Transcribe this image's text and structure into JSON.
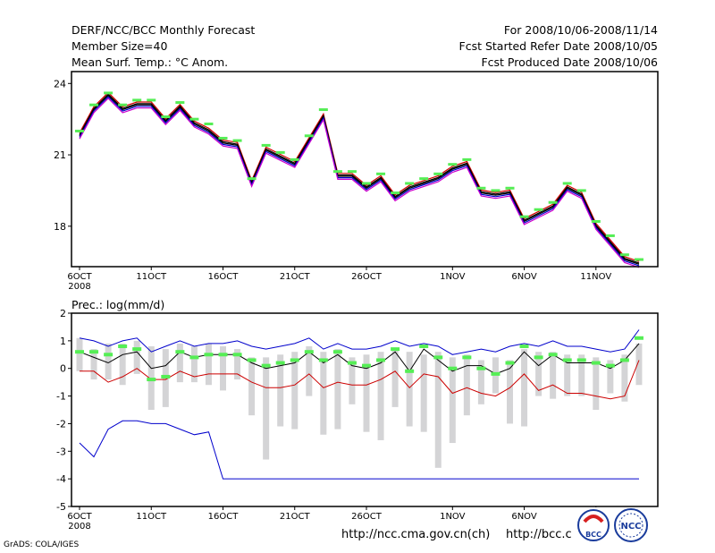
{
  "header": {
    "left": [
      "DERF/NCC/BCC Monthly Forecast",
      "Member Size=40",
      "Mean Surf. Temp.: °C Anom."
    ],
    "right": [
      "For 2008/10/06-2008/11/14",
      "Fcst Started Refer Date 2008/10/05",
      "Fcst Produced Date 2008/10/06"
    ]
  },
  "footer": {
    "grads": "GrADS: COLA/IGES",
    "url1": "http://ncc.cma.gov.cn(ch)",
    "url2": "http://bcc.c",
    "logo1": "BCC",
    "logo2": "NCC"
  },
  "chart_data": [
    {
      "type": "line",
      "title": "Mean Surf. Temp.: °C Anom.",
      "days": 40,
      "ylim": [
        16.3,
        24.5
      ],
      "yticks": [
        18,
        21,
        24
      ],
      "xticks": [
        {
          "day": 0,
          "label": "6OCT",
          "sub": "2008"
        },
        {
          "day": 5,
          "label": "11OCT"
        },
        {
          "day": 10,
          "label": "16OCT"
        },
        {
          "day": 15,
          "label": "21OCT"
        },
        {
          "day": 20,
          "label": "26OCT"
        },
        {
          "day": 26,
          "label": "1NOV"
        },
        {
          "day": 31,
          "label": "6NOV"
        },
        {
          "day": 36,
          "label": "11NOV"
        }
      ],
      "series": [
        {
          "name": "ensemble mean",
          "values": [
            21.8,
            22.9,
            23.5,
            22.9,
            23.1,
            23.1,
            22.4,
            23.0,
            22.3,
            22.0,
            21.5,
            21.4,
            19.8,
            21.2,
            20.9,
            20.6,
            21.6,
            22.6,
            20.1,
            20.1,
            19.6,
            20.0,
            19.2,
            19.6,
            19.8,
            20.0,
            20.4,
            20.6,
            19.4,
            19.3,
            19.4,
            18.2,
            18.5,
            18.8,
            19.6,
            19.3,
            18.0,
            17.3,
            16.6,
            16.4
          ]
        },
        {
          "name": "green markers",
          "values": [
            22.0,
            23.1,
            23.6,
            23.1,
            23.3,
            23.3,
            22.6,
            23.2,
            22.5,
            22.3,
            21.7,
            21.6,
            20.0,
            21.4,
            21.1,
            20.8,
            21.8,
            22.9,
            20.3,
            20.3,
            19.8,
            20.2,
            19.4,
            19.8,
            20.0,
            20.2,
            20.6,
            20.8,
            19.6,
            19.5,
            19.6,
            18.4,
            18.7,
            19.0,
            19.8,
            19.5,
            18.2,
            17.6,
            16.8,
            16.6
          ]
        }
      ]
    },
    {
      "type": "line",
      "title": "Prec.: log(mm/d)",
      "days": 40,
      "ylim": [
        -5,
        2
      ],
      "yticks": [
        -5,
        -4,
        -3,
        -2,
        -1,
        0,
        1,
        2
      ],
      "xticks": [
        {
          "day": 0,
          "label": "6OCT",
          "sub": "2008"
        },
        {
          "day": 5,
          "label": "11OCT"
        },
        {
          "day": 10,
          "label": "16OCT"
        },
        {
          "day": 15,
          "label": "21OCT"
        },
        {
          "day": 20,
          "label": "26OCT"
        },
        {
          "day": 26,
          "label": "1NOV"
        },
        {
          "day": 31,
          "label": "6NOV"
        },
        {
          "day": 36,
          "label": "11NOV"
        }
      ],
      "bars": {
        "top": [
          1.1,
          0.7,
          0.9,
          0.9,
          1.0,
          0.8,
          0.7,
          0.9,
          0.8,
          0.9,
          0.8,
          0.7,
          0.4,
          0.4,
          0.5,
          0.6,
          0.8,
          0.6,
          0.7,
          0.4,
          0.5,
          0.6,
          0.7,
          0.6,
          0.5,
          0.6,
          0.4,
          0.5,
          0.3,
          0.4,
          0.3,
          0.7,
          0.6,
          0.6,
          0.5,
          0.5,
          0.4,
          0.3,
          0.5,
          0.9
        ],
        "bottom": [
          -0.1,
          -0.4,
          -0.4,
          -0.6,
          -0.2,
          -1.5,
          -1.4,
          -0.5,
          -0.5,
          -0.6,
          -0.8,
          -0.4,
          -1.7,
          -3.3,
          -2.1,
          -2.2,
          -1.0,
          -2.4,
          -2.2,
          -1.3,
          -2.3,
          -2.6,
          -1.4,
          -2.1,
          -2.3,
          -3.6,
          -2.7,
          -1.7,
          -1.3,
          -0.9,
          -2.0,
          -2.1,
          -1.0,
          -1.1,
          -1.0,
          -1.0,
          -1.5,
          -0.9,
          -1.2,
          -0.6
        ]
      },
      "series": [
        {
          "name": "upper bound",
          "color": "#0000cc",
          "values": [
            1.1,
            1.0,
            0.8,
            1.0,
            1.1,
            0.6,
            0.8,
            1.0,
            0.8,
            0.9,
            0.9,
            1.0,
            0.8,
            0.7,
            0.8,
            0.9,
            1.1,
            0.7,
            0.9,
            0.7,
            0.7,
            0.8,
            1.0,
            0.8,
            0.9,
            0.8,
            0.5,
            0.6,
            0.7,
            0.6,
            0.8,
            0.9,
            0.8,
            1.0,
            0.8,
            0.8,
            0.7,
            0.6,
            0.7,
            1.4
          ]
        },
        {
          "name": "ensemble mean",
          "color": "#000000",
          "values": [
            0.6,
            0.4,
            0.2,
            0.5,
            0.6,
            0.0,
            0.1,
            0.6,
            0.4,
            0.5,
            0.5,
            0.5,
            0.2,
            0.0,
            0.1,
            0.2,
            0.6,
            0.2,
            0.5,
            0.1,
            0.0,
            0.2,
            0.6,
            -0.1,
            0.7,
            0.3,
            -0.1,
            0.1,
            0.1,
            -0.2,
            0.0,
            0.6,
            0.1,
            0.5,
            0.2,
            0.2,
            0.2,
            0.0,
            0.3,
            0.9
          ]
        },
        {
          "name": "lower bound",
          "color": "#cc0000",
          "values": [
            -0.1,
            -0.1,
            -0.5,
            -0.3,
            0.0,
            -0.4,
            -0.4,
            -0.1,
            -0.3,
            -0.2,
            -0.2,
            -0.2,
            -0.5,
            -0.7,
            -0.7,
            -0.6,
            -0.2,
            -0.7,
            -0.5,
            -0.6,
            -0.6,
            -0.4,
            -0.1,
            -0.7,
            -0.2,
            -0.3,
            -0.9,
            -0.7,
            -0.9,
            -1.0,
            -0.7,
            -0.2,
            -0.8,
            -0.6,
            -0.9,
            -0.9,
            -1.0,
            -1.1,
            -1.0,
            0.3
          ]
        },
        {
          "name": "minimum",
          "color": "#0000cc",
          "values": [
            -2.7,
            -3.2,
            -2.2,
            -1.9,
            -1.9,
            -2.0,
            -2.0,
            -2.2,
            -2.4,
            -2.3,
            -4.0,
            -4.0,
            -4.0,
            -4.0,
            -4.0,
            -4.0,
            -4.0,
            -4.0,
            -4.0,
            -4.0,
            -4.0,
            -4.0,
            -4.0,
            -4.0,
            -4.0,
            -4.0,
            -4.0,
            -4.0,
            -4.0,
            -4.0,
            -4.0,
            -4.0,
            -4.0,
            -4.0,
            -4.0,
            -4.0,
            -4.0,
            -4.0,
            -4.0,
            -4.0
          ]
        },
        {
          "name": "green markers",
          "color": "#55ee55",
          "values": [
            0.6,
            0.6,
            0.5,
            0.8,
            0.7,
            -0.4,
            -0.3,
            0.6,
            0.4,
            0.5,
            0.5,
            0.5,
            0.3,
            0.1,
            0.2,
            0.3,
            0.6,
            0.3,
            0.6,
            0.2,
            0.1,
            0.3,
            0.7,
            -0.1,
            0.8,
            0.4,
            0.0,
            0.4,
            0.0,
            -0.2,
            0.2,
            0.8,
            0.4,
            0.5,
            0.3,
            0.3,
            0.2,
            0.1,
            0.3,
            1.1
          ]
        }
      ]
    }
  ]
}
